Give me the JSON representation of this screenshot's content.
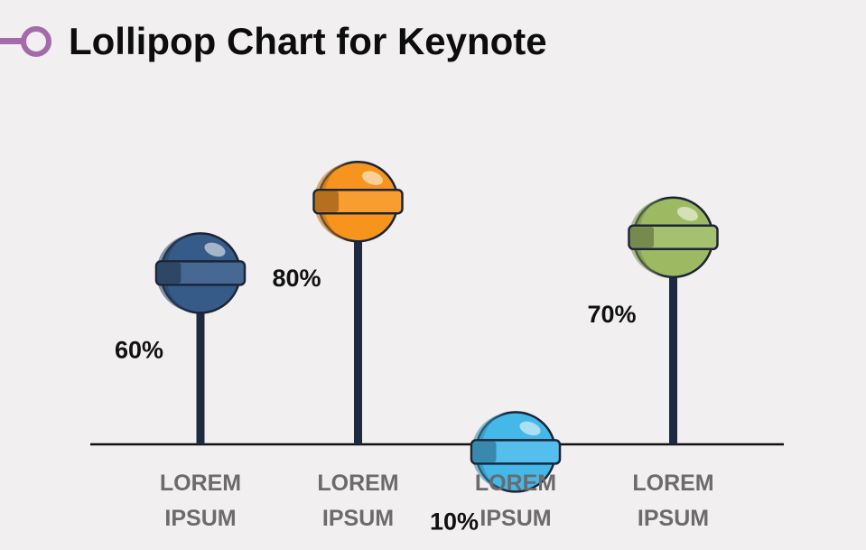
{
  "header": {
    "title": "Lollipop Chart for Keynote",
    "icon": "magnifier-ring-icon",
    "icon_color": "#a46aa9"
  },
  "chart_data": {
    "type": "lollipop",
    "title": "Lollipop Chart for Keynote",
    "categories": [
      [
        "LOREM",
        "IPSUM"
      ],
      [
        "LOREM",
        "IPSUM"
      ],
      [
        "LOREM",
        "IPSUM"
      ],
      [
        "LOREM",
        "IPSUM"
      ]
    ],
    "values": [
      60,
      80,
      10,
      70
    ],
    "value_labels": [
      "60%",
      "80%",
      "10%",
      "70%"
    ],
    "colors": [
      "#375b88",
      "#f7941e",
      "#45b8ea",
      "#9dba62"
    ],
    "ylim": [
      0,
      100
    ],
    "grid": false,
    "legend": "none"
  }
}
